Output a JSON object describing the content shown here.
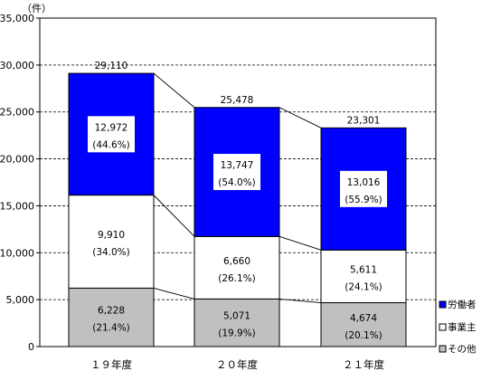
{
  "chart_data": {
    "type": "bar",
    "stacked": true,
    "unit_label": "（件）",
    "categories": [
      "１９年度",
      "２０年度",
      "２１年度"
    ],
    "totals": [
      29110,
      25478,
      23301
    ],
    "total_labels": [
      "29,110",
      "25,478",
      "23,301"
    ],
    "series": [
      {
        "name": "その他",
        "color": "#c0c0c0",
        "values": [
          6228,
          5071,
          4674
        ],
        "labels": [
          "6,228",
          "5,071",
          "4,674"
        ],
        "percents": [
          "(21.4%)",
          "(19.9%)",
          "(20.1%)"
        ]
      },
      {
        "name": "事業主",
        "color": "#ffffff",
        "values": [
          9910,
          6660,
          5611
        ],
        "labels": [
          "9,910",
          "6,660",
          "5,611"
        ],
        "percents": [
          "(34.0%)",
          "(26.1%)",
          "(24.1%)"
        ]
      },
      {
        "name": "労働者",
        "color": "#0000ff",
        "values": [
          12972,
          13747,
          13016
        ],
        "labels": [
          "12,972",
          "13,747",
          "13,016"
        ],
        "percents": [
          "(44.6%)",
          "(54.0%)",
          "(55.9%)"
        ]
      }
    ],
    "legend_order": [
      "労働者",
      "事業主",
      "その他"
    ],
    "ylim": [
      0,
      35000
    ],
    "yticks": [
      0,
      5000,
      10000,
      15000,
      20000,
      25000,
      30000,
      35000
    ],
    "ytick_labels": [
      "0",
      "5,000",
      "10,000",
      "15,000",
      "20,000",
      "25,000",
      "30,000",
      "35,000"
    ],
    "grid": true,
    "legend_position": "right",
    "connector_lines": true
  }
}
